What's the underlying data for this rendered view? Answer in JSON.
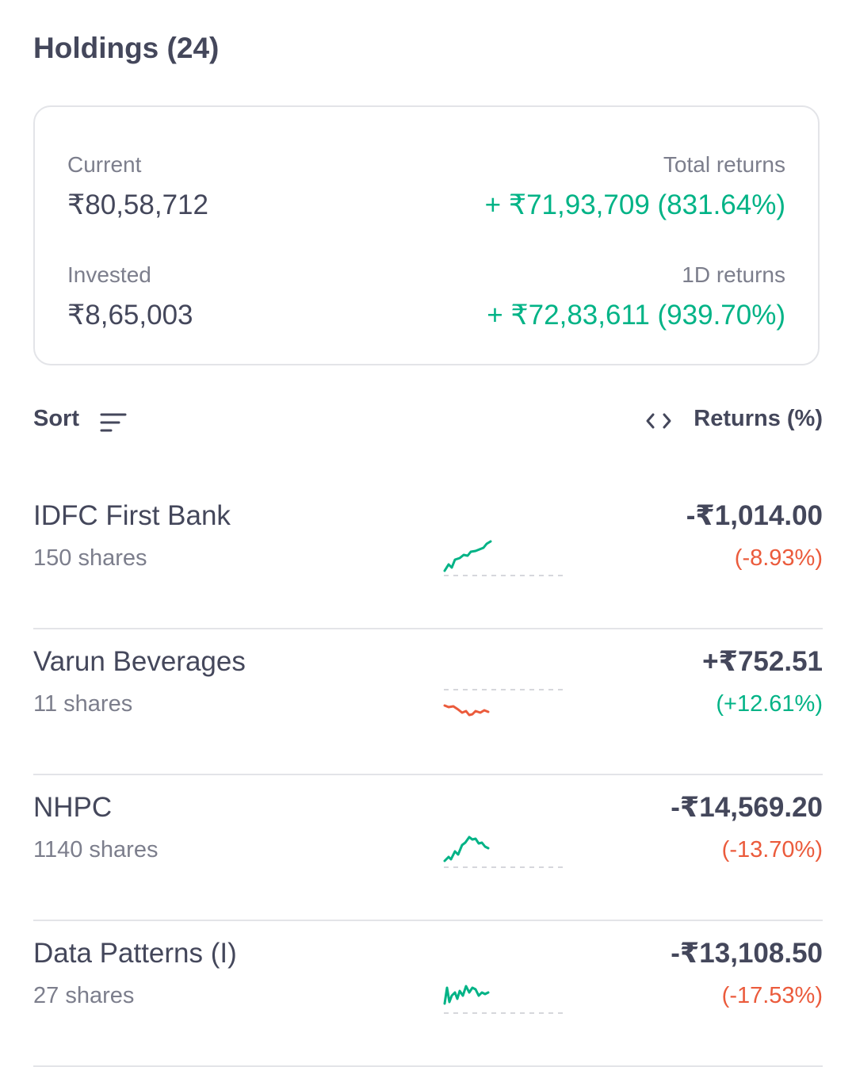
{
  "header": {
    "title": "Holdings (24)"
  },
  "summary": {
    "current_label": "Current",
    "current_value": "₹80,58,712",
    "invested_label": "Invested",
    "invested_value": "₹8,65,003",
    "total_returns_label": "Total returns",
    "total_returns_value": "+ ₹71,93,709 (831.64%)",
    "day_returns_label": "1D returns",
    "day_returns_value": "+ ₹72,83,611 (939.70%)"
  },
  "sortbar": {
    "sort_label": "Sort",
    "returns_label": "Returns (%)"
  },
  "holdings": [
    {
      "name": "IDFC First Bank",
      "shares": "150 shares",
      "amount": "-₹1,014.00",
      "percent": "(-8.93%)",
      "trend": "up"
    },
    {
      "name": "Varun Beverages",
      "shares": "11 shares",
      "amount": "+₹752.51",
      "percent": "(+12.61%)",
      "trend": "down"
    },
    {
      "name": "NHPC",
      "shares": "1140 shares",
      "amount": "-₹14,569.20",
      "percent": "(-13.70%)",
      "trend": "up"
    },
    {
      "name": "Data Patterns (I)",
      "shares": "27 shares",
      "amount": "-₹13,108.50",
      "percent": "(-17.53%)",
      "trend": "up"
    }
  ],
  "colors": {
    "positive": "#00b386",
    "negative": "#eb5b3c",
    "text": "#44475b",
    "muted": "#7c7e8c"
  }
}
